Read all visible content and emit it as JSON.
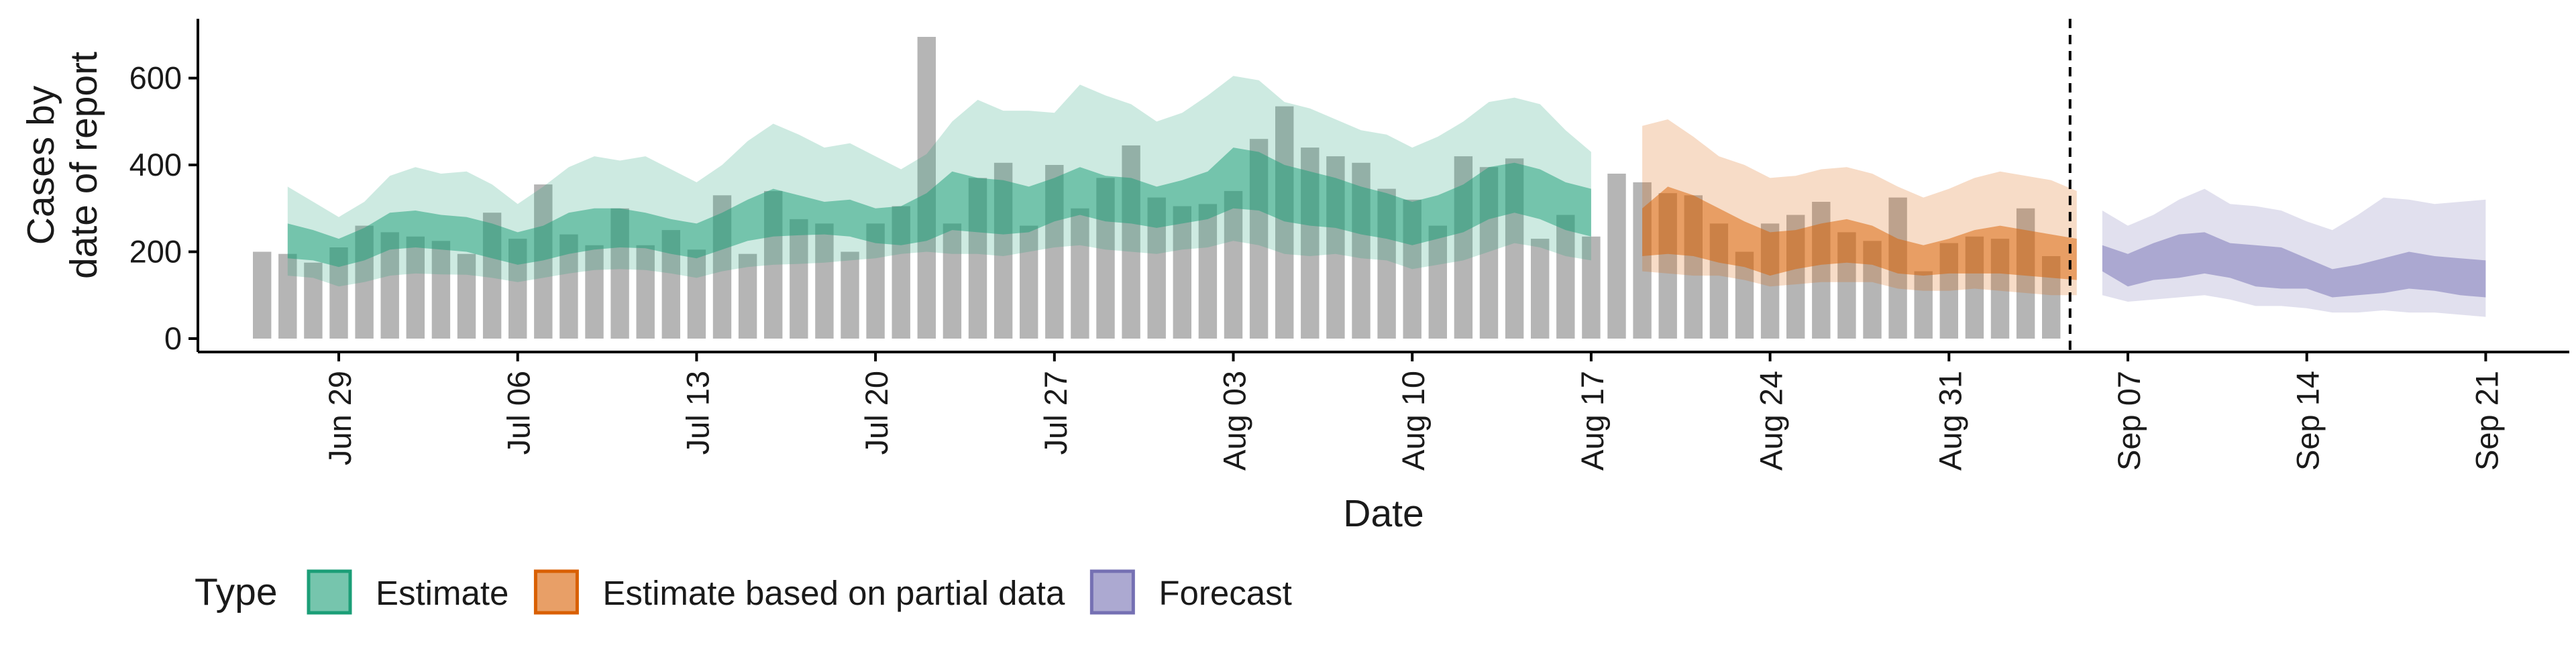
{
  "chart_data": {
    "type": "bar",
    "xlabel": "Date",
    "ylabel": [
      "Cases by",
      "date of report"
    ],
    "ylim": [
      0,
      730
    ],
    "xlim": [
      "2020-06-22",
      "2020-09-22"
    ],
    "y_ticks": [
      0,
      200,
      400,
      600
    ],
    "x_ticks": [
      {
        "date": "2020-06-29",
        "label": "Jun 29"
      },
      {
        "date": "2020-07-06",
        "label": "Jul 06"
      },
      {
        "date": "2020-07-13",
        "label": "Jul 13"
      },
      {
        "date": "2020-07-20",
        "label": "Jul 20"
      },
      {
        "date": "2020-07-27",
        "label": "Jul 27"
      },
      {
        "date": "2020-08-03",
        "label": "Aug 03"
      },
      {
        "date": "2020-08-10",
        "label": "Aug 10"
      },
      {
        "date": "2020-08-17",
        "label": "Aug 17"
      },
      {
        "date": "2020-08-24",
        "label": "Aug 24"
      },
      {
        "date": "2020-08-31",
        "label": "Aug 31"
      },
      {
        "date": "2020-09-07",
        "label": "Sep 07"
      },
      {
        "date": "2020-09-14",
        "label": "Sep 14"
      },
      {
        "date": "2020-09-21",
        "label": "Sep 21"
      }
    ],
    "forecast_start_date": "2020-09-05",
    "bars": {
      "start_date": "2020-06-26",
      "color": "#b5b5b5",
      "values": [
        200,
        195,
        175,
        210,
        260,
        245,
        235,
        225,
        195,
        290,
        230,
        355,
        240,
        215,
        300,
        215,
        250,
        205,
        330,
        195,
        340,
        275,
        265,
        200,
        265,
        305,
        695,
        265,
        370,
        405,
        260,
        400,
        300,
        370,
        445,
        325,
        305,
        310,
        340,
        460,
        535,
        440,
        420,
        405,
        345,
        320,
        260,
        420,
        395,
        415,
        230,
        285,
        235,
        380,
        360,
        335,
        330,
        265,
        200,
        265,
        285,
        315,
        245,
        225,
        325,
        155,
        220,
        235,
        230,
        300,
        190
      ]
    },
    "estimate": {
      "start_date": "2020-06-27",
      "lower90": [
        145,
        140,
        120,
        130,
        145,
        150,
        148,
        147,
        140,
        130,
        140,
        150,
        158,
        160,
        158,
        150,
        140,
        155,
        165,
        170,
        172,
        175,
        180,
        185,
        195,
        200,
        195,
        195,
        190,
        200,
        210,
        215,
        205,
        200,
        195,
        205,
        210,
        225,
        215,
        195,
        190,
        195,
        185,
        180,
        160,
        170,
        180,
        200,
        220,
        210,
        190,
        180
      ],
      "lower50": [
        185,
        180,
        165,
        180,
        205,
        210,
        205,
        200,
        185,
        170,
        180,
        195,
        205,
        210,
        208,
        195,
        185,
        205,
        225,
        235,
        238,
        240,
        235,
        220,
        215,
        225,
        250,
        245,
        240,
        245,
        270,
        285,
        270,
        265,
        255,
        265,
        275,
        300,
        295,
        270,
        260,
        255,
        240,
        230,
        215,
        230,
        245,
        275,
        290,
        275,
        250,
        235
      ],
      "upper50": [
        265,
        250,
        230,
        255,
        290,
        295,
        285,
        280,
        265,
        245,
        260,
        290,
        300,
        300,
        290,
        275,
        265,
        290,
        320,
        345,
        330,
        315,
        320,
        300,
        305,
        335,
        385,
        370,
        365,
        350,
        370,
        395,
        375,
        370,
        350,
        365,
        385,
        440,
        430,
        400,
        385,
        370,
        350,
        335,
        315,
        330,
        355,
        395,
        405,
        390,
        360,
        345
      ],
      "upper90": [
        350,
        315,
        280,
        315,
        375,
        395,
        380,
        385,
        355,
        310,
        350,
        395,
        420,
        410,
        420,
        390,
        360,
        400,
        455,
        495,
        470,
        440,
        450,
        420,
        390,
        425,
        500,
        550,
        525,
        525,
        520,
        585,
        560,
        540,
        500,
        520,
        560,
        605,
        595,
        545,
        530,
        505,
        480,
        470,
        440,
        465,
        500,
        545,
        555,
        540,
        480,
        430
      ]
    },
    "partial_estimate": {
      "start_date": "2020-08-19",
      "lower90": [
        155,
        150,
        145,
        145,
        135,
        120,
        125,
        130,
        130,
        130,
        115,
        110,
        110,
        115,
        110,
        105,
        100,
        100
      ],
      "lower50": [
        190,
        195,
        190,
        175,
        165,
        145,
        160,
        170,
        175,
        170,
        150,
        145,
        150,
        150,
        150,
        145,
        140,
        135
      ],
      "upper50": [
        300,
        350,
        330,
        300,
        270,
        245,
        250,
        265,
        275,
        260,
        230,
        215,
        230,
        250,
        260,
        250,
        240,
        230
      ],
      "upper90": [
        490,
        505,
        465,
        420,
        400,
        370,
        375,
        390,
        395,
        380,
        350,
        325,
        345,
        370,
        385,
        375,
        365,
        340
      ]
    },
    "forecast": {
      "start_date": "2020-09-06",
      "lower90": [
        100,
        85,
        90,
        95,
        100,
        90,
        75,
        75,
        70,
        60,
        60,
        65,
        60,
        60,
        55,
        50
      ],
      "lower50": [
        155,
        120,
        135,
        140,
        150,
        140,
        120,
        115,
        115,
        95,
        100,
        105,
        115,
        110,
        100,
        95
      ],
      "upper50": [
        215,
        195,
        220,
        240,
        245,
        220,
        215,
        210,
        185,
        160,
        170,
        185,
        200,
        190,
        185,
        180
      ],
      "upper90": [
        295,
        260,
        285,
        320,
        345,
        310,
        305,
        295,
        270,
        250,
        285,
        325,
        320,
        310,
        315,
        320
      ]
    },
    "legend": {
      "title": "Type",
      "position": "bottom-left",
      "items": [
        {
          "label": "Estimate",
          "fill": "#1b9e77"
        },
        {
          "label": "Estimate based on partial data",
          "fill": "#d95f02"
        },
        {
          "label": "Forecast",
          "fill": "#7570b3"
        }
      ]
    }
  }
}
